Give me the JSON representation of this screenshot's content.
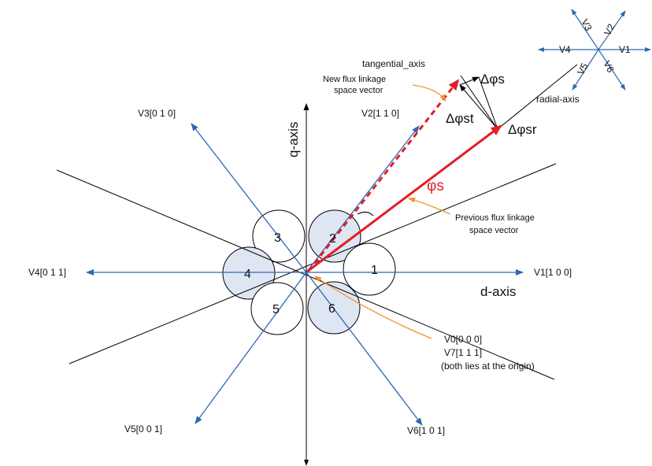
{
  "colors": {
    "vector_blue": "#2f68b0",
    "flux_red": "#e31e24",
    "annotation_orange": "#f0932b",
    "sector_fill": "#dfe6f3",
    "line_black": "#000000"
  },
  "axes": {
    "q_axis": "q-axis",
    "d_axis": "d-axis"
  },
  "vectors": {
    "v1": "V1[1 0 0]",
    "v2": "V2[1 1 0]",
    "v3": "V3[0 1 0]",
    "v4": "V4[0 1 1]",
    "v5": "V5[0 0 1]",
    "v6": "V6[1 0 1]"
  },
  "zero_vectors": {
    "v0": "V0[0 0 0]",
    "v7": "V7[1 1 1]",
    "note": "(both lies at the origin)"
  },
  "sectors": [
    "1",
    "2",
    "3",
    "4",
    "5",
    "6"
  ],
  "flux": {
    "phi_s": "φs",
    "delta_phi_s": "Δφs",
    "delta_phi_st": "Δφst",
    "delta_phi_sr": "Δφsr",
    "tangential_axis": "tangential_axis",
    "radial_axis": "radial-axis",
    "new_vector_line1": "New flux linkage",
    "new_vector_line2": "space vector",
    "prev_vector_line1": "Previous flux linkage",
    "prev_vector_line2": "space vector"
  },
  "mini_star": {
    "v1": "V1",
    "v2": "V2",
    "v3": "V3",
    "v4": "V4",
    "v5": "V5",
    "v6": "V6"
  }
}
